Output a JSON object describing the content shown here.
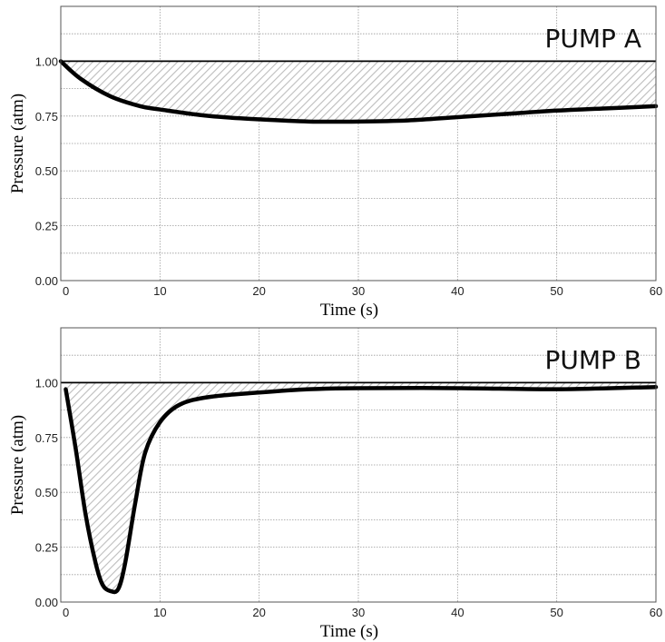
{
  "chart_data": [
    {
      "type": "area",
      "title": "PUMP A",
      "xlabel": "Time (s)",
      "ylabel": "Pressure (atm)",
      "xlim": [
        0,
        60
      ],
      "ylim": [
        0,
        1.25
      ],
      "x_ticks": [
        "0",
        "10",
        "20",
        "30",
        "40",
        "50",
        "60"
      ],
      "y_ticks": [
        "0.00",
        "0.25",
        "0.50",
        "0.75",
        "1.00"
      ],
      "grid": true,
      "reference_level": 1.0,
      "series": [
        {
          "x": [
            0,
            2,
            5,
            8,
            10,
            15,
            20,
            25,
            30,
            35,
            40,
            45,
            50,
            55,
            60
          ],
          "values": [
            1.0,
            0.92,
            0.84,
            0.795,
            0.78,
            0.75,
            0.735,
            0.725,
            0.725,
            0.73,
            0.745,
            0.76,
            0.775,
            0.785,
            0.795
          ]
        }
      ]
    },
    {
      "type": "area",
      "title": "PUMP B",
      "xlabel": "Time (s)",
      "ylabel": "Pressure (atm)",
      "xlim": [
        0,
        60
      ],
      "ylim": [
        0,
        1.25
      ],
      "x_ticks": [
        "0",
        "10",
        "20",
        "30",
        "40",
        "50",
        "60"
      ],
      "y_ticks": [
        "0.00",
        "0.25",
        "0.50",
        "0.75",
        "1.00"
      ],
      "grid": true,
      "reference_level": 1.0,
      "series": [
        {
          "x": [
            0.5,
            1.5,
            2.5,
            3.5,
            4.2,
            5.0,
            5.8,
            6.5,
            7.5,
            8.5,
            10,
            12,
            15,
            20,
            25,
            30,
            40,
            50,
            60
          ],
          "values": [
            0.97,
            0.7,
            0.4,
            0.18,
            0.08,
            0.05,
            0.06,
            0.18,
            0.45,
            0.68,
            0.82,
            0.9,
            0.935,
            0.955,
            0.97,
            0.975,
            0.975,
            0.97,
            0.98
          ]
        }
      ]
    }
  ]
}
